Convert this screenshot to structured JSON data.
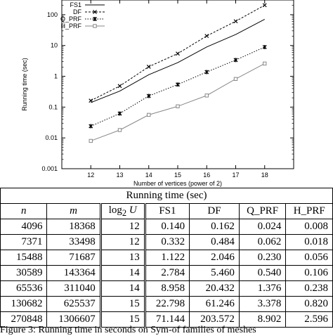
{
  "chart_data": {
    "type": "line",
    "title": "",
    "xlabel": "Number of vertices (power of 2)",
    "ylabel": "Running time (sec)",
    "x": [
      12,
      13,
      14,
      15,
      16,
      17,
      18
    ],
    "xlim": [
      11,
      19
    ],
    "ylim": [
      0.001,
      300
    ],
    "y_scale": "log",
    "y_ticks": [
      "0.001",
      "0.01",
      "0.1",
      "1",
      "10",
      "100"
    ],
    "legend_position": "top-left",
    "series": [
      {
        "name": "FS1",
        "style": "solid",
        "marker": "none",
        "values": [
          0.14,
          0.332,
          1.122,
          2.784,
          8.958,
          22.798,
          71.144
        ]
      },
      {
        "name": "DF",
        "style": "dashed",
        "marker": "x",
        "values": [
          0.162,
          0.484,
          2.046,
          5.46,
          20.432,
          61.246,
          203.572
        ]
      },
      {
        "name": "Q_PRF",
        "style": "dotted",
        "marker": "star",
        "values": [
          0.024,
          0.062,
          0.23,
          0.54,
          1.376,
          3.378,
          8.902
        ]
      },
      {
        "name": "H_PRF",
        "style": "solid-gray",
        "marker": "square",
        "values": [
          0.008,
          0.018,
          0.056,
          0.106,
          0.238,
          0.82,
          2.596
        ]
      }
    ]
  },
  "table": {
    "title": "Running time (sec)",
    "headers": {
      "n": "n",
      "m": "m",
      "logu": "log",
      "logu_sub": "2",
      "logu_var": "U",
      "fs1": "FS1",
      "df": "DF",
      "qprf": "Q_PRF",
      "hprf": "H_PRF"
    },
    "rows": [
      [
        "4096",
        "18368",
        "12",
        "0.140",
        "0.162",
        "0.024",
        "0.008"
      ],
      [
        "7371",
        "33498",
        "12",
        "0.332",
        "0.484",
        "0.062",
        "0.018"
      ],
      [
        "15488",
        "71687",
        "13",
        "1.122",
        "2.046",
        "0.230",
        "0.056"
      ],
      [
        "30589",
        "143364",
        "14",
        "2.784",
        "5.460",
        "0.540",
        "0.106"
      ],
      [
        "65536",
        "311040",
        "14",
        "8.958",
        "20.432",
        "1.376",
        "0.238"
      ],
      [
        "130682",
        "625537",
        "15",
        "22.798",
        "61.246",
        "3.378",
        "0.820"
      ],
      [
        "270848",
        "1306607",
        "15",
        "71.144",
        "203.572",
        "8.902",
        "2.596"
      ]
    ]
  },
  "caption": "Figure 3: Running time in seconds on Sym-of families of meshes"
}
